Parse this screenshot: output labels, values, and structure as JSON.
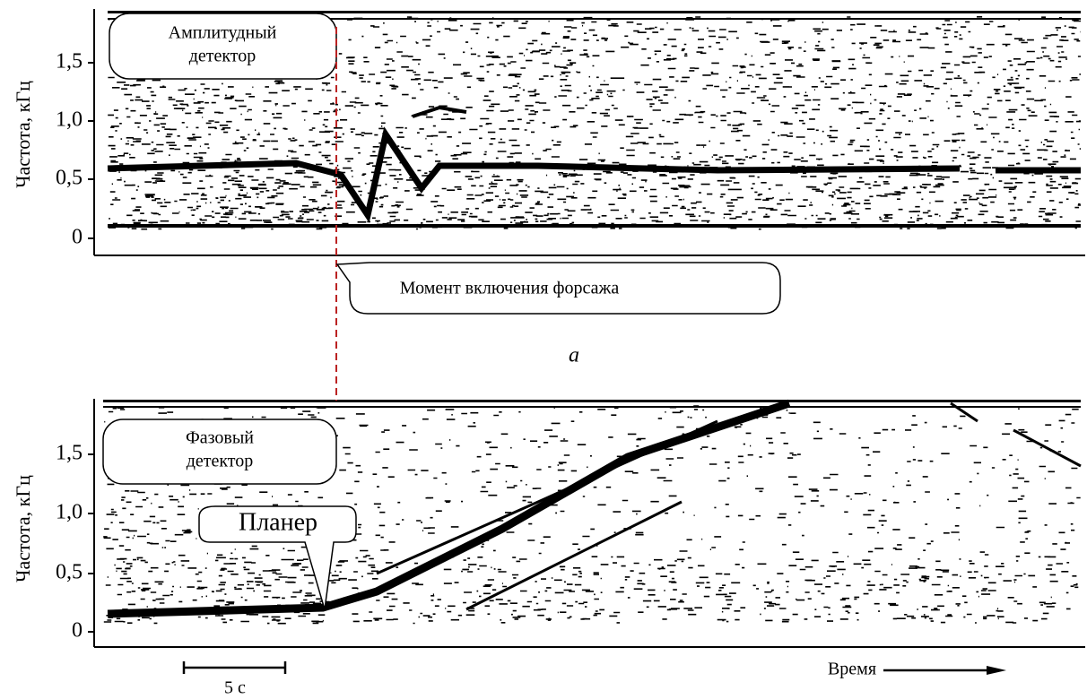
{
  "panel_a": {
    "y_axis_label": "Частота, кГц",
    "y_ticks": [
      "1,5",
      "1,0",
      "0,5",
      "0"
    ],
    "callout_lines": [
      "Амплитудный",
      "детектор"
    ],
    "event_callout": "Момент включения форсажа",
    "caption": "а"
  },
  "panel_b": {
    "y_axis_label": "Частота, кГц",
    "y_ticks": [
      "1,5",
      "1,0",
      "0,5",
      "0"
    ],
    "callout_lines": [
      "Фазовый",
      "детектор"
    ],
    "glider_label": "Планер",
    "scale_bar_label": "5 с",
    "time_label": "Время"
  }
}
